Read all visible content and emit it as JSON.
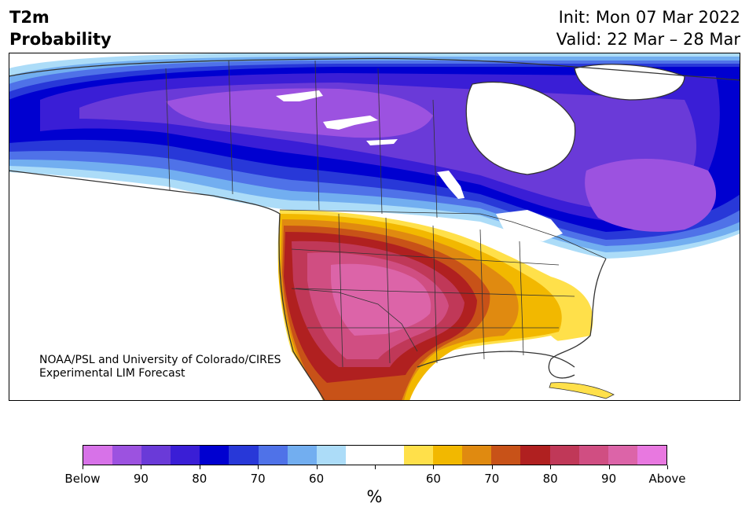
{
  "title": {
    "left_line1": "T2m",
    "left_line2": "Probability",
    "init": "Init: Mon 07 Mar 2022",
    "valid": "Valid: 22 Mar – 28 Mar"
  },
  "credit": {
    "line1": "NOAA/PSL and University of Colorado/CIRES",
    "line2": "Experimental LIM Forecast"
  },
  "colorbar": {
    "colors": [
      "#d772e8",
      "#9c52e0",
      "#6a3ad8",
      "#3a1ed6",
      "#0000d0",
      "#2838d8",
      "#4f72e8",
      "#72aef0",
      "#acdcf8",
      "#ffffff",
      "#ffffff",
      "#ffe04a",
      "#f2b800",
      "#e08a10",
      "#c85218",
      "#b02020",
      "#c03858",
      "#d04e82",
      "#dc64a8",
      "#e878e0"
    ],
    "labels": [
      "Below",
      "90",
      "80",
      "70",
      "60",
      "",
      "60",
      "70",
      "80",
      "90",
      "Above"
    ],
    "unit": "%"
  }
}
